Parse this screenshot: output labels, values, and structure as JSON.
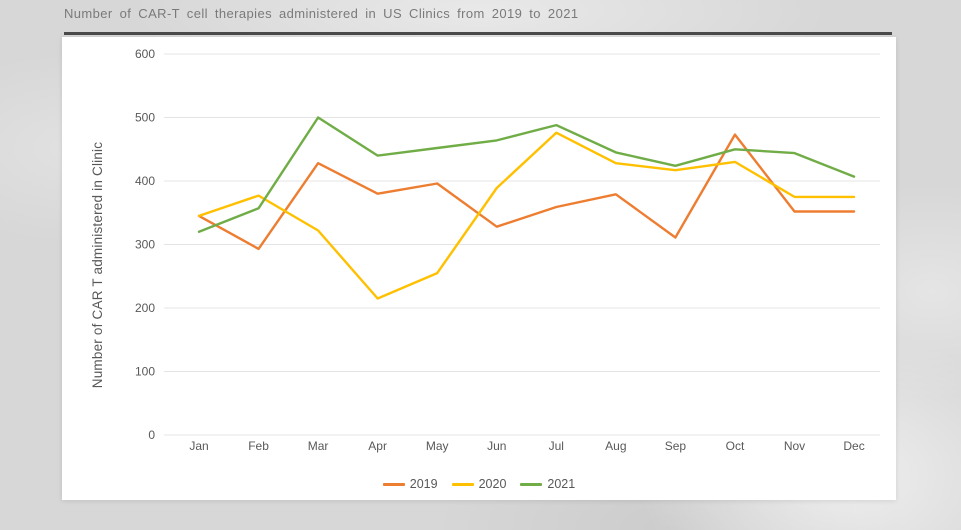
{
  "page": {
    "background_color": "#d7d7d7",
    "panel_color": "#ffffff",
    "title_underline_color": "#4a4a4a"
  },
  "chart_data": {
    "type": "line",
    "title": "Number of CAR-T cell therapies administered in US Clinics from 2019 to 2021",
    "xlabel": "",
    "ylabel": "Number of CAR T administered in Clinic",
    "ylim": [
      0,
      600
    ],
    "yticks": [
      0,
      100,
      200,
      300,
      400,
      500,
      600
    ],
    "grid": true,
    "gridline_color": "#e4e4e4",
    "tick_label_color": "#595959",
    "legend_position": "bottom",
    "categories": [
      "Jan",
      "Feb",
      "Mar",
      "Apr",
      "May",
      "Jun",
      "Jul",
      "Aug",
      "Sep",
      "Oct",
      "Nov",
      "Dec"
    ],
    "series": [
      {
        "name": "2019",
        "color": "#ED7D31",
        "values": [
          345,
          293,
          428,
          380,
          396,
          328,
          359,
          379,
          311,
          473,
          352,
          352
        ]
      },
      {
        "name": "2020",
        "color": "#FFC000",
        "values": [
          345,
          377,
          322,
          215,
          255,
          389,
          476,
          428,
          417,
          430,
          375,
          375
        ]
      },
      {
        "name": "2021",
        "color": "#70AD47",
        "values": [
          320,
          357,
          500,
          440,
          452,
          464,
          488,
          445,
          424,
          450,
          444,
          407
        ]
      }
    ]
  }
}
